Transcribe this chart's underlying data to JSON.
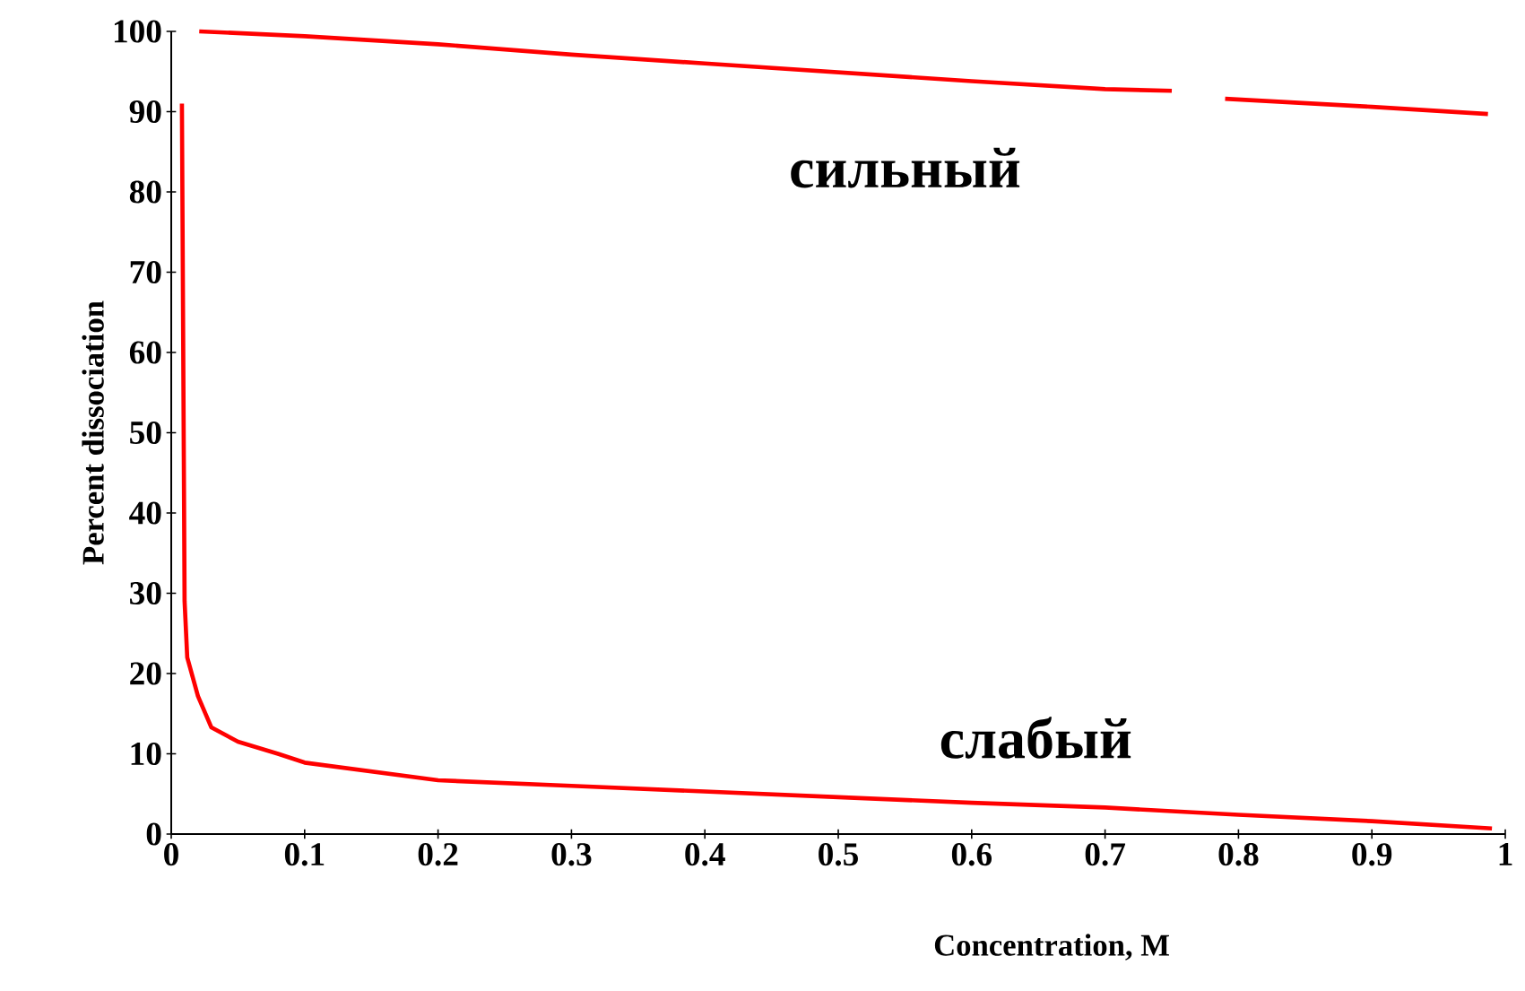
{
  "chart_data": {
    "type": "line",
    "xlabel": "Concentration, M",
    "ylabel": "Percent dissociation",
    "xlim": [
      0,
      1
    ],
    "ylim": [
      0,
      100
    ],
    "xticks": [
      0,
      0.1,
      0.2,
      0.3,
      0.4,
      0.5,
      0.6,
      0.7,
      0.8,
      0.9,
      1
    ],
    "yticks": [
      0,
      10,
      20,
      30,
      40,
      50,
      60,
      70,
      80,
      90,
      100
    ],
    "marker": "none",
    "line_style": "solid",
    "grid": false,
    "series": [
      {
        "name": "сильный",
        "color": "#ff0000",
        "x": [
          0.021,
          0.1,
          0.2,
          0.3,
          0.4,
          0.5,
          0.6,
          0.7,
          0.75,
          0.77,
          0.79,
          0.9,
          0.987
        ],
        "values": [
          100,
          99.4,
          98.4,
          97.1,
          96.0,
          94.9,
          93.8,
          92.8,
          92.6,
          null,
          91.6,
          90.6,
          89.7
        ]
      },
      {
        "name": "слабый",
        "color": "#ff0000",
        "x": [
          0.008,
          0.01,
          0.012,
          0.02,
          0.03,
          0.05,
          0.08,
          0.1,
          0.2,
          0.3,
          0.4,
          0.5,
          0.6,
          0.7,
          0.8,
          0.9,
          0.99
        ],
        "values": [
          91,
          29,
          22,
          17.2,
          13.3,
          11.5,
          10,
          8.9,
          6.7,
          6.0,
          5.3,
          4.6,
          3.9,
          3.3,
          2.4,
          1.6,
          0.7
        ]
      }
    ]
  }
}
